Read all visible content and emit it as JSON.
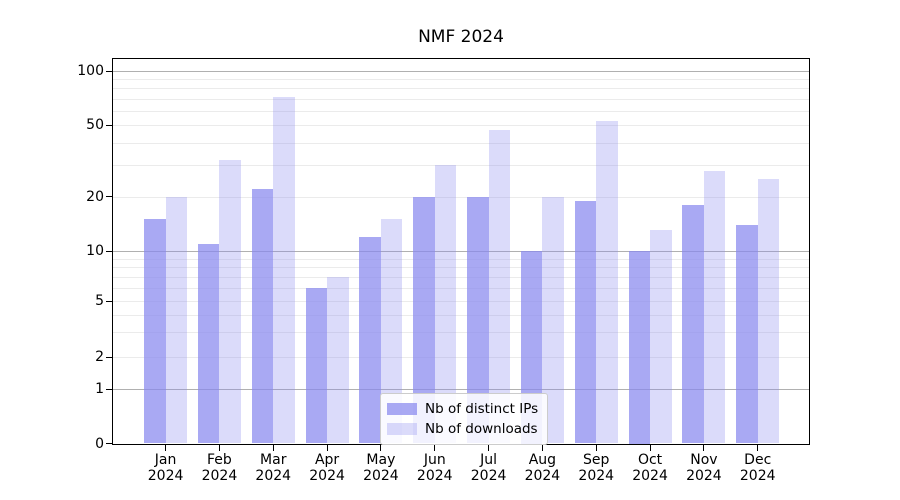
{
  "chart_data": {
    "type": "bar",
    "title": "NMF 2024",
    "categories": [
      "Jan 2024",
      "Feb 2024",
      "Mar 2024",
      "Apr 2024",
      "May 2024",
      "Jun 2024",
      "Jul 2024",
      "Aug 2024",
      "Sep 2024",
      "Oct 2024",
      "Nov 2024",
      "Dec 2024"
    ],
    "series": [
      {
        "name": "Nb of distinct IPs",
        "color": "#8888ee",
        "opacity": 0.72,
        "values": [
          15,
          11,
          22,
          6,
          12,
          20,
          20,
          10,
          19,
          10,
          18,
          14
        ]
      },
      {
        "name": "Nb of downloads",
        "color": "#8888ee",
        "opacity": 0.3,
        "values": [
          20,
          32,
          72,
          7,
          15,
          30,
          47,
          20,
          53,
          13,
          28,
          25
        ]
      }
    ],
    "xlabel": "",
    "ylabel": "",
    "yscale": "symlog",
    "yticks": [
      0,
      1,
      2,
      5,
      10,
      20,
      50,
      100
    ],
    "minor_grid_values": [
      3,
      4,
      6,
      7,
      8,
      9,
      30,
      40,
      60,
      70,
      80,
      90
    ],
    "major_grid_values": [
      1,
      10,
      100
    ],
    "ylim": [
      0,
      107
    ],
    "grid": "on",
    "legend_position": "lower center"
  },
  "colors": {
    "background": "#ffffff",
    "bar_base": "#8888ee",
    "grid_major": "#b0b0b0",
    "grid_minor": "#ebebeb",
    "axis": "#000000",
    "legend_border": "#cccccc"
  }
}
